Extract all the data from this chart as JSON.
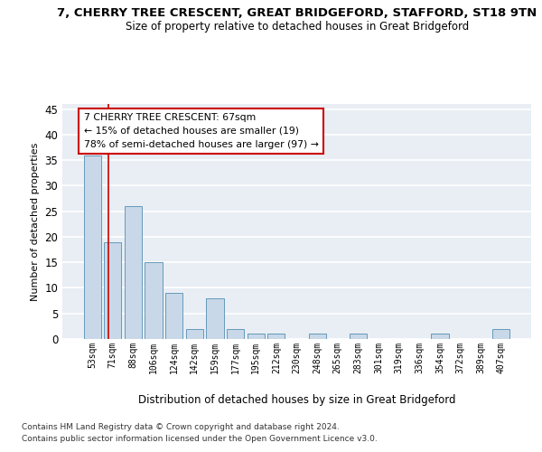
{
  "title": "7, CHERRY TREE CRESCENT, GREAT BRIDGEFORD, STAFFORD, ST18 9TN",
  "subtitle": "Size of property relative to detached houses in Great Bridgeford",
  "xlabel": "Distribution of detached houses by size in Great Bridgeford",
  "ylabel": "Number of detached properties",
  "categories": [
    "53sqm",
    "71sqm",
    "88sqm",
    "106sqm",
    "124sqm",
    "142sqm",
    "159sqm",
    "177sqm",
    "195sqm",
    "212sqm",
    "230sqm",
    "248sqm",
    "265sqm",
    "283sqm",
    "301sqm",
    "319sqm",
    "336sqm",
    "354sqm",
    "372sqm",
    "389sqm",
    "407sqm"
  ],
  "values": [
    36,
    19,
    26,
    15,
    9,
    2,
    8,
    2,
    1,
    1,
    0,
    1,
    0,
    1,
    0,
    0,
    0,
    1,
    0,
    0,
    2
  ],
  "bar_color": "#c8d8e8",
  "bar_edge_color": "#6699bb",
  "ylim": [
    0,
    46
  ],
  "yticks": [
    0,
    5,
    10,
    15,
    20,
    25,
    30,
    35,
    40,
    45
  ],
  "annotation_text": "7 CHERRY TREE CRESCENT: 67sqm\n← 15% of detached houses are smaller (19)\n78% of semi-detached houses are larger (97) →",
  "annotation_box_color": "#ffffff",
  "annotation_box_edge": "#cc0000",
  "bg_color": "#e8eef4",
  "grid_color": "#ffffff",
  "footer_line1": "Contains HM Land Registry data © Crown copyright and database right 2024.",
  "footer_line2": "Contains public sector information licensed under the Open Government Licence v3.0."
}
